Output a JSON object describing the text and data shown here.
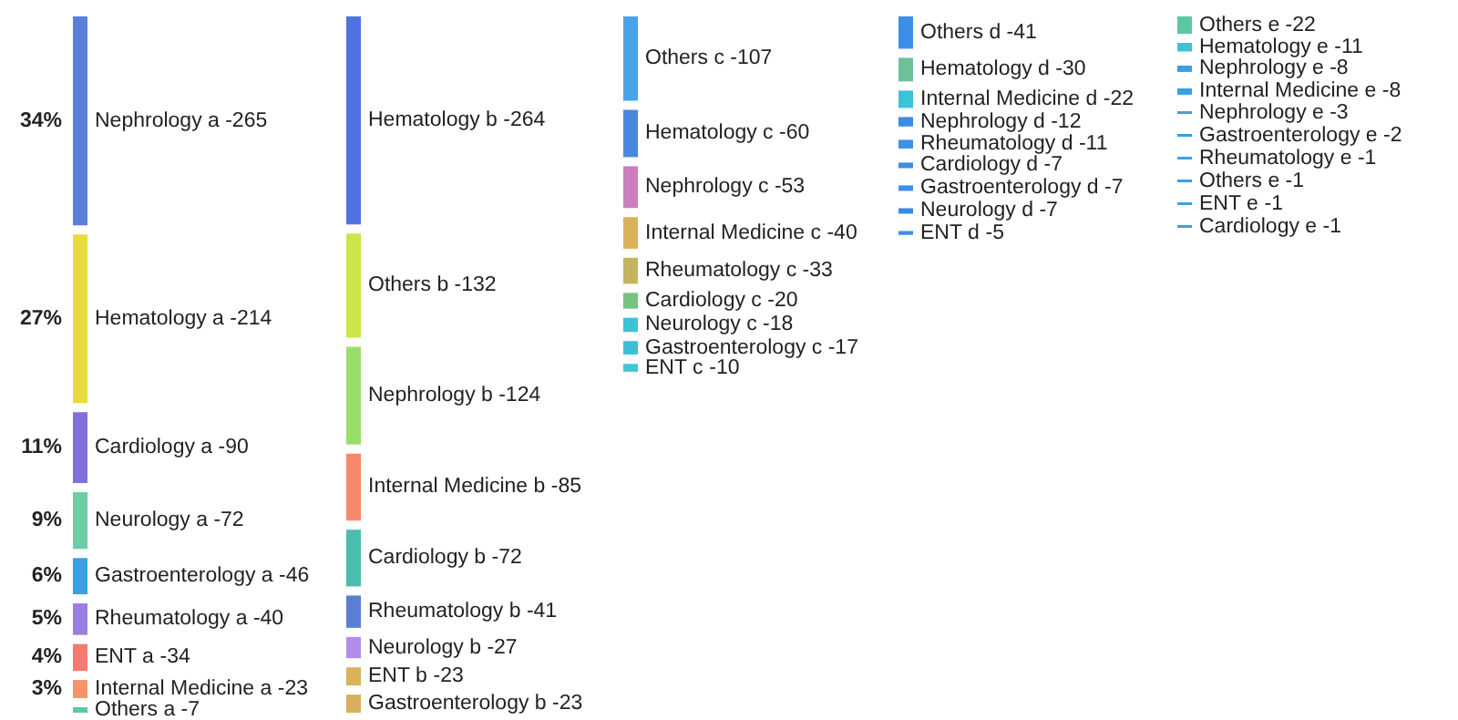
{
  "chart_data": [
    {
      "type": "other",
      "categories": [
        "Nephrology a",
        "Hematology a",
        "Cardiology a",
        "Neurology a",
        "Gastroenterology a",
        "Rheumatology a",
        "ENT a",
        "Internal Medicine a",
        "Others a"
      ],
      "values": [
        -265,
        -214,
        -90,
        -72,
        -46,
        -40,
        -34,
        -23,
        -7
      ],
      "value_labels": [
        "-265",
        "-214",
        "-90",
        "-72",
        "-46",
        "-40",
        "-34",
        "-23",
        "-7"
      ],
      "annotations": [
        "34%",
        "27%",
        "11%",
        "9%",
        "6%",
        "5%",
        "4%",
        "3%"
      ],
      "colors": [
        "#5b7fd9",
        "#e8dc3c",
        "#8471d8",
        "#6fcca6",
        "#3aa0e4",
        "#9a7fe0",
        "#f47a72",
        "#f7936b",
        "#5cc7a4"
      ]
    },
    {
      "type": "other",
      "categories": [
        "Hematology b",
        "Others b",
        "Nephrology b",
        "Internal Medicine b",
        "Cardiology b",
        "Rheumatology b",
        "Neurology b",
        "ENT b",
        "Gastroenterology b"
      ],
      "values": [
        -264,
        -132,
        -124,
        -85,
        -72,
        -41,
        -27,
        -23,
        -23
      ],
      "value_labels": [
        "-264",
        "-132",
        "-124",
        "-85",
        "-72",
        "-41",
        "-27",
        "-23",
        "-23"
      ],
      "colors": [
        "#4f72e3",
        "#cde44a",
        "#98de6c",
        "#f7896b",
        "#4cbcae",
        "#5a7fd6",
        "#b38de8",
        "#d9b25a",
        "#d6b05c"
      ]
    },
    {
      "type": "other",
      "categories": [
        "Others c",
        "Hematology c",
        "Nephrology c",
        "Internal Medicine c",
        "Rheumatology c",
        "Cardiology c",
        "Neurology c",
        "Gastroenterology c",
        "ENT c"
      ],
      "values": [
        -107,
        -60,
        -53,
        -40,
        -33,
        -20,
        -18,
        -17,
        -10
      ],
      "value_labels": [
        "-107",
        "-60",
        "-53",
        "-40",
        "-33",
        "-20",
        "-18",
        "-17",
        "-10"
      ],
      "colors": [
        "#4ba3e6",
        "#4a86e0",
        "#cc7fbf",
        "#d9b25a",
        "#c4b45e",
        "#78c27f",
        "#3cc3d6",
        "#3ac1d4",
        "#3ec5d8"
      ]
    },
    {
      "type": "other",
      "categories": [
        "Others d",
        "Hematology d",
        "Internal Medicine d",
        "Nephrology d",
        "Rheumatology d",
        "Cardiology d",
        "Gastroenterology d",
        "Neurology d",
        "ENT d"
      ],
      "values": [
        -41,
        -30,
        -22,
        -12,
        -11,
        -7,
        -7,
        -7,
        -5
      ],
      "value_labels": [
        "-41",
        "-30",
        "-22",
        "-12",
        "-11",
        "-7",
        "-7",
        "-7",
        "-5"
      ],
      "colors": [
        "#3d8ee6",
        "#6fc09a",
        "#3cc3d6",
        "#3b8de4",
        "#3f90e8",
        "#3c8ce5",
        "#3e8fe7",
        "#3a8be3",
        "#408fe6"
      ]
    },
    {
      "type": "other",
      "categories": [
        "Others e",
        "Hematology e",
        "Nephrology e",
        "Internal Medicine e",
        "Nephrology e",
        "Gastroenterology e",
        "Rheumatology e",
        "Others e",
        "ENT e",
        "Cardiology e"
      ],
      "values": [
        -22,
        -11,
        -8,
        -8,
        -3,
        -2,
        -1,
        -1,
        -1,
        -1
      ],
      "value_labels": [
        "-22",
        "-11",
        "-8",
        "-8",
        "-3",
        "-2",
        "-1",
        "-1",
        "-1",
        "-1"
      ],
      "colors": [
        "#5cc7a4",
        "#3cc3d6",
        "#3aa0e4",
        "#399fe3",
        "#3ba1e5",
        "#389ee2",
        "#3ca2e6",
        "#37a0e3",
        "#3b9fe4",
        "#39a1e2"
      ]
    }
  ]
}
